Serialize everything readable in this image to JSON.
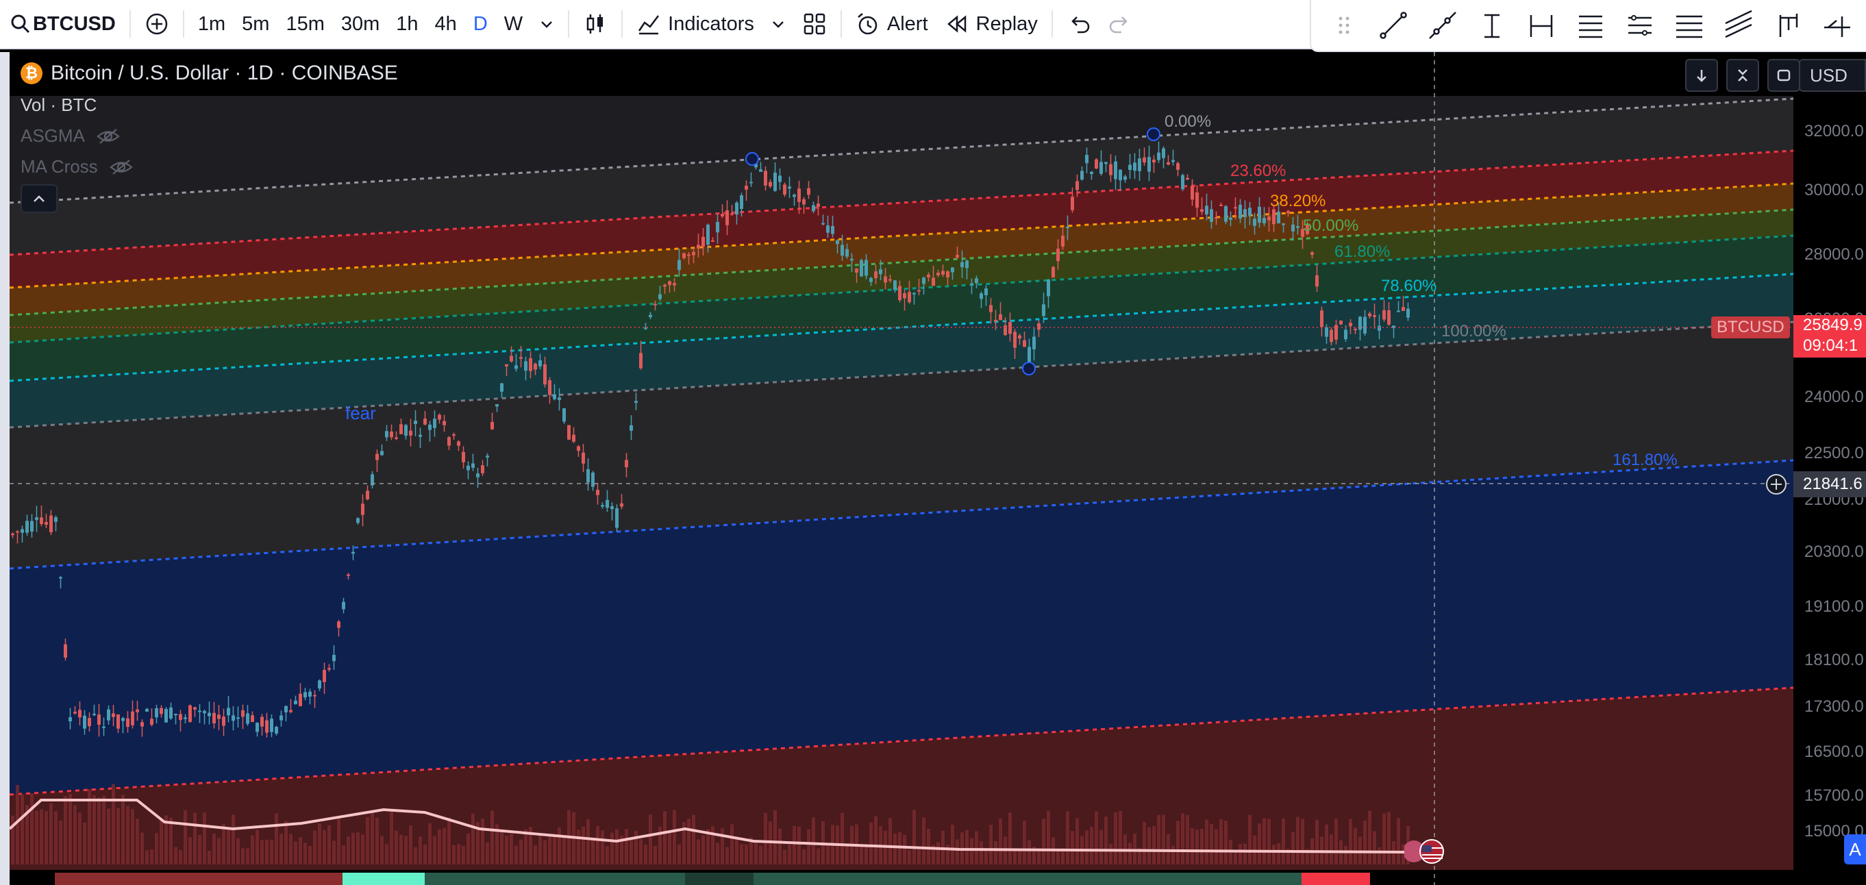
{
  "toolbar": {
    "symbol": "BTCUSD",
    "intervals": [
      "1m",
      "5m",
      "15m",
      "30m",
      "1h",
      "4h",
      "D",
      "W"
    ],
    "active_interval": "D",
    "indicators_label": "Indicators",
    "alert_label": "Alert",
    "replay_label": "Replay"
  },
  "drawing_tools": [
    "trend-line",
    "ray",
    "vertical-line",
    "date-range",
    "fib-retracement",
    "fib-extension",
    "parallel-channel",
    "regression-trend",
    "pitchfork",
    "long-position"
  ],
  "legend": {
    "title": "Bitcoin / U.S. Dollar · 1D · COINBASE",
    "volume": "Vol · BTC",
    "ind1": "ASGMA",
    "ind2": "MA Cross"
  },
  "scale": {
    "currency": "USD",
    "ticks": [
      "32000.0",
      "30000.0",
      "28000.0",
      "26000.0",
      "24000.0",
      "22500.0",
      "21000.0",
      "20300.0",
      "19100.0",
      "18100.0",
      "17300.0",
      "16500.0",
      "15700.0",
      "15000.0"
    ],
    "last_price": "25849.9",
    "countdown": "09:04:1",
    "crosshair_price": "21841.6",
    "symbol_badge": "BTCUSD"
  },
  "fib_levels": [
    {
      "label": "0.00%",
      "color": "#9598a1"
    },
    {
      "label": "23.60%",
      "color": "#f23645"
    },
    {
      "label": "38.20%",
      "color": "#ff9800"
    },
    {
      "label": "50.00%",
      "color": "#4caf50"
    },
    {
      "label": "61.80%",
      "color": "#089981"
    },
    {
      "label": "78.60%",
      "color": "#00bcd4"
    },
    {
      "label": "100.00%",
      "color": "#787b86"
    },
    {
      "label": "161.80%",
      "color": "#2962ff"
    }
  ],
  "annotation": "fear",
  "bottom_button": "A"
}
